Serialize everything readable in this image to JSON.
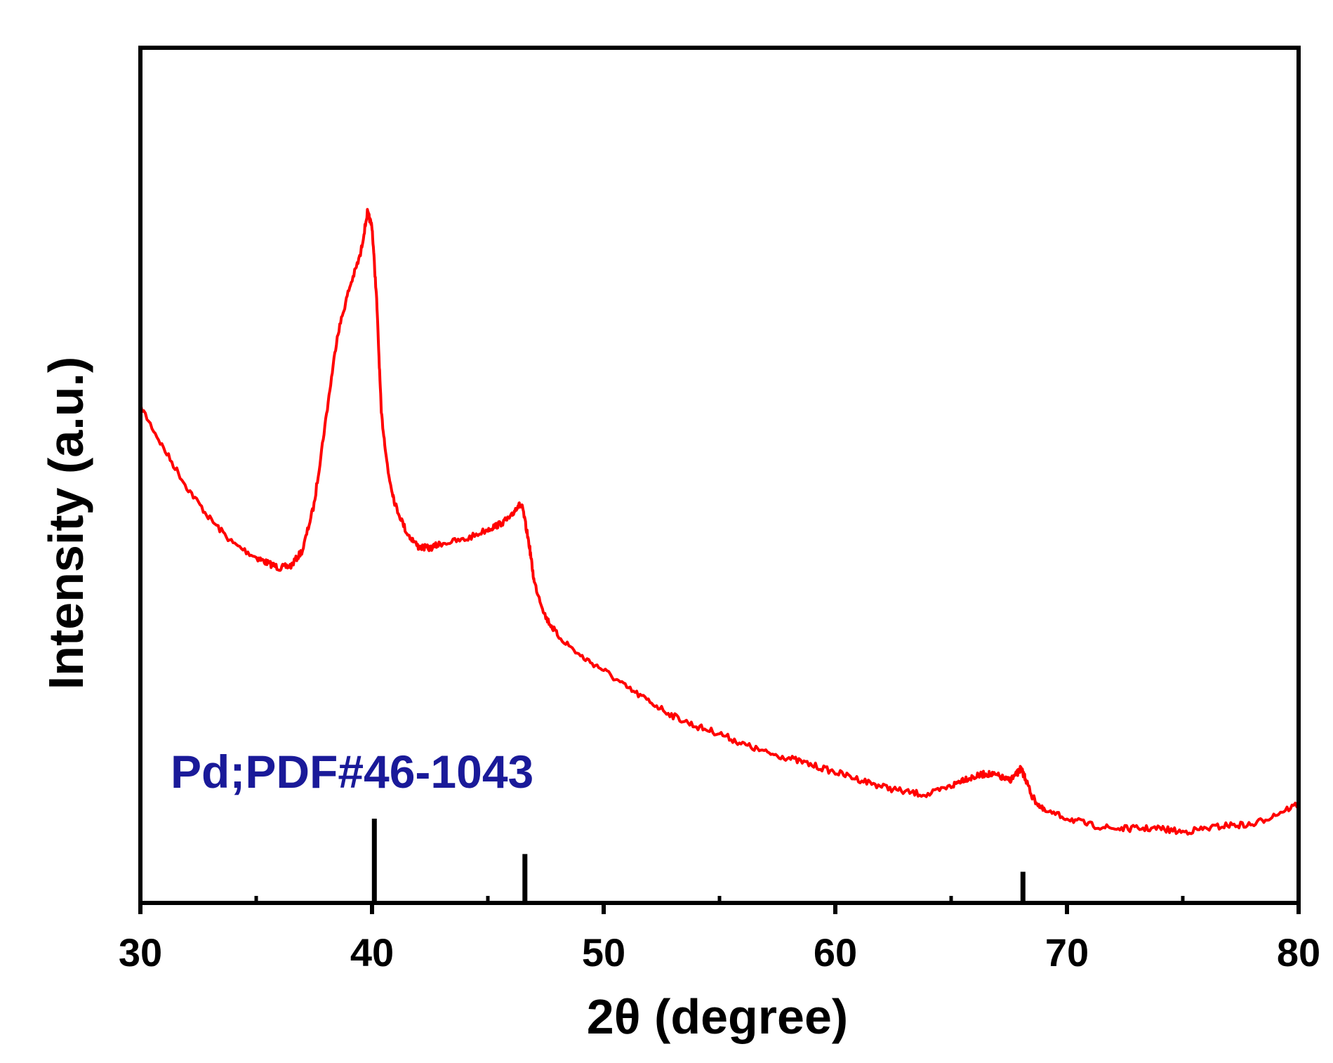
{
  "colors": {
    "series": "#ff0000",
    "reference_lines": "#000000",
    "reference_label": "#1a1a99",
    "axes": "#000000",
    "background": "#ffffff"
  },
  "chart_data": {
    "type": "line",
    "title": "",
    "xlabel": "2θ (degree)",
    "ylabel": "Intensity (a.u.)",
    "xlim": [
      30,
      80
    ],
    "ylim": [
      0,
      100
    ],
    "x_ticks": [
      30,
      40,
      50,
      60,
      70,
      80
    ],
    "x_tick_labels": [
      "30",
      "40",
      "50",
      "60",
      "70",
      "80"
    ],
    "y_tick_labels_shown": false,
    "grid": false,
    "legend": "none",
    "series": [
      {
        "x": [
          30,
          31,
          32,
          33,
          34,
          35,
          35.5,
          36,
          36.5,
          37,
          37.5,
          38,
          38.5,
          39,
          39.5,
          39.8,
          40,
          40.2,
          40.4,
          40.7,
          41,
          41.5,
          42,
          42.5,
          43,
          44,
          45,
          45.5,
          46,
          46.3,
          46.5,
          46.8,
          47,
          47.5,
          48,
          49,
          50,
          51,
          52,
          53,
          54,
          55,
          56,
          57,
          58,
          59,
          60,
          61,
          62,
          63,
          64,
          65,
          65.5,
          66,
          66.5,
          67,
          67.5,
          67.8,
          68,
          68.2,
          68.5,
          69,
          70,
          71,
          72,
          73,
          74,
          75,
          76,
          77,
          78,
          79,
          80
        ],
        "y": [
          59,
          53,
          47.5,
          43,
          39.5,
          37.5,
          36.7,
          36,
          36.3,
          38.5,
          45,
          57,
          69,
          75.5,
          80.5,
          86.5,
          84.5,
          74,
          58,
          49.5,
          45,
          41,
          39,
          38.8,
          39.5,
          40,
          41.5,
          42.2,
          43.2,
          45,
          44.5,
          39,
          34,
          29,
          26.5,
          23.5,
          21.5,
          19,
          17,
          15,
          13.5,
          12.5,
          11,
          9.8,
          9,
          8,
          7,
          6,
          5,
          4.2,
          3.8,
          5,
          6,
          6.3,
          6.8,
          6.5,
          5.8,
          6.6,
          7.5,
          6.2,
          3.5,
          1.5,
          0.5,
          -0.5,
          -1,
          -1,
          -1,
          -1.5,
          -1,
          -0.5,
          -0.5,
          1,
          2.5
        ]
      }
    ],
    "reference_pattern": {
      "label": "Pd;PDF#46-1043",
      "positions": [
        40.1,
        46.6,
        68.1
      ],
      "relative_heights": [
        100,
        58,
        37
      ]
    }
  }
}
